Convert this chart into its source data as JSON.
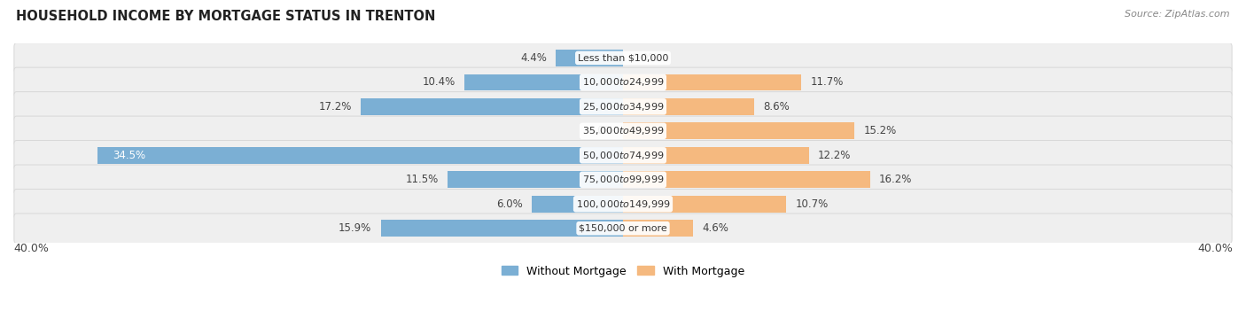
{
  "title": "HOUSEHOLD INCOME BY MORTGAGE STATUS IN TRENTON",
  "source": "Source: ZipAtlas.com",
  "categories": [
    "Less than $10,000",
    "$10,000 to $24,999",
    "$25,000 to $34,999",
    "$35,000 to $49,999",
    "$50,000 to $74,999",
    "$75,000 to $99,999",
    "$100,000 to $149,999",
    "$150,000 or more"
  ],
  "without_mortgage": [
    4.4,
    10.4,
    17.2,
    0.0,
    34.5,
    11.5,
    6.0,
    15.9
  ],
  "with_mortgage": [
    0.0,
    11.7,
    8.6,
    15.2,
    12.2,
    16.2,
    10.7,
    4.6
  ],
  "color_without": "#7BAFD4",
  "color_with": "#F5B97F",
  "xlim": 40.0,
  "legend_labels": [
    "Without Mortgage",
    "With Mortgage"
  ],
  "axis_label_left": "40.0%",
  "axis_label_right": "40.0%",
  "row_bg_color": "#EFEFEF",
  "row_border_color": "#D8D8D8"
}
